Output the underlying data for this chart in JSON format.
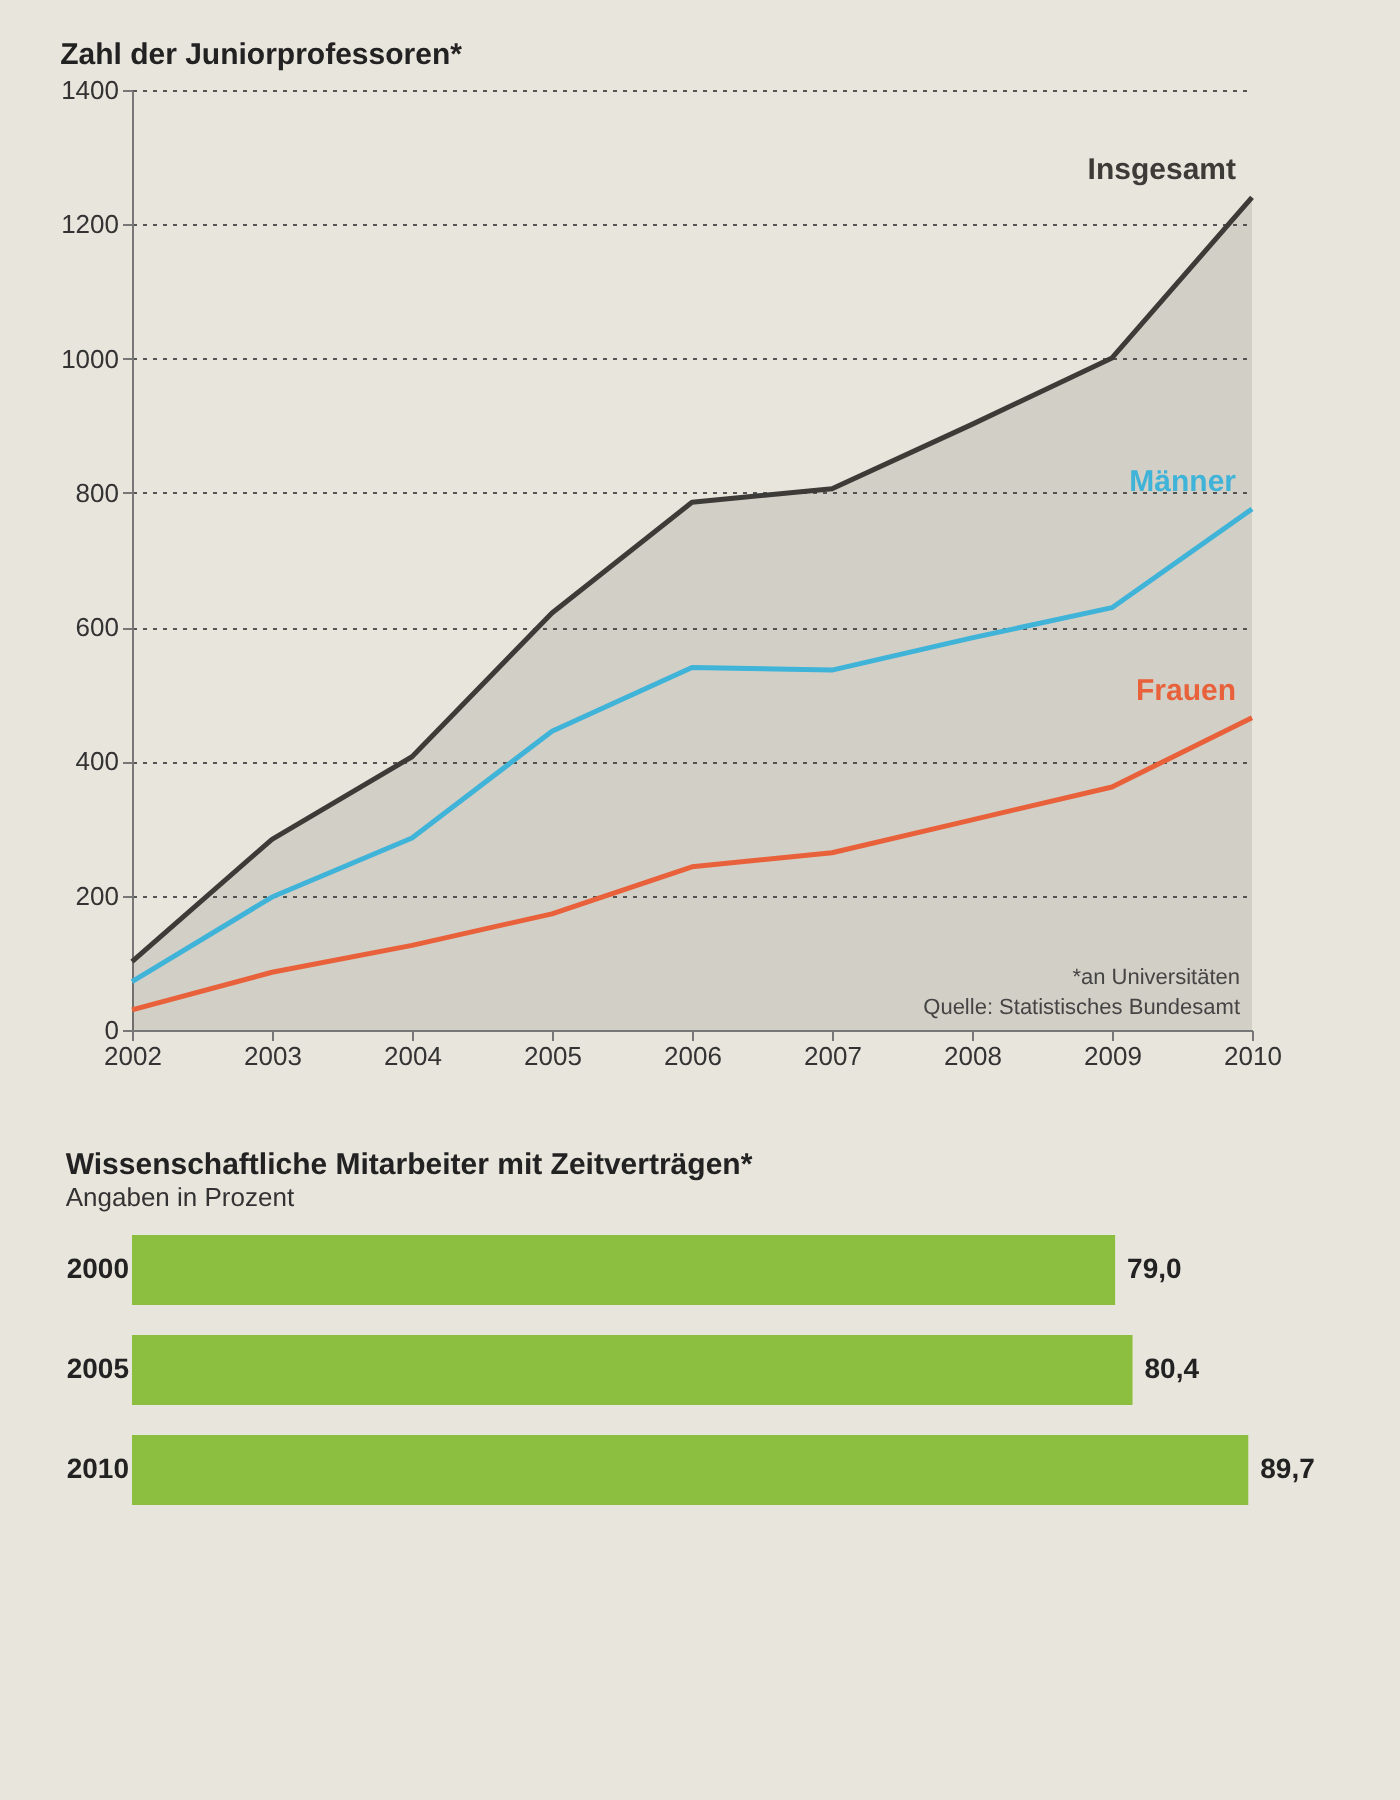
{
  "chart_data": [
    {
      "type": "line",
      "title": "Zahl der Juniorprofessoren*",
      "x": [
        2002,
        2003,
        2004,
        2005,
        2006,
        2007,
        2008,
        2009,
        2010
      ],
      "series": [
        {
          "name": "Insgesamt",
          "type": "area",
          "color": "#3d3b37",
          "values": [
            102,
            284,
            407,
            621,
            786,
            806,
            902,
            1001,
            1240
          ]
        },
        {
          "name": "Männer",
          "color": "#3fb3d8",
          "values": [
            72,
            198,
            286,
            445,
            540,
            536,
            584,
            629,
            776
          ]
        },
        {
          "name": "Frauen",
          "color": "#e8613a",
          "values": [
            30,
            86,
            126,
            173,
            243,
            264,
            313,
            362,
            465
          ]
        }
      ],
      "xlim": [
        2002,
        2010
      ],
      "xticks": [
        2002,
        2003,
        2004,
        2005,
        2006,
        2007,
        2008,
        2009,
        2010
      ],
      "ylim": [
        0,
        1400
      ],
      "yticks": [
        0,
        200,
        400,
        600,
        800,
        1000,
        1200,
        1400
      ],
      "grid": "y",
      "annotations": [
        "*an Universitäten",
        "Quelle: Statistisches Bundesamt"
      ]
    },
    {
      "type": "bar",
      "orientation": "horizontal",
      "title": "Wissenschaftliche Mitarbeiter mit Zeitverträgen*",
      "subtitle": "Angaben in Prozent",
      "categories": [
        "2000",
        "2005",
        "2010"
      ],
      "values": [
        79.0,
        80.4,
        89.7
      ],
      "value_labels": [
        "79,0",
        "80,4",
        "89,7"
      ],
      "color": "#8cbf3f"
    }
  ]
}
